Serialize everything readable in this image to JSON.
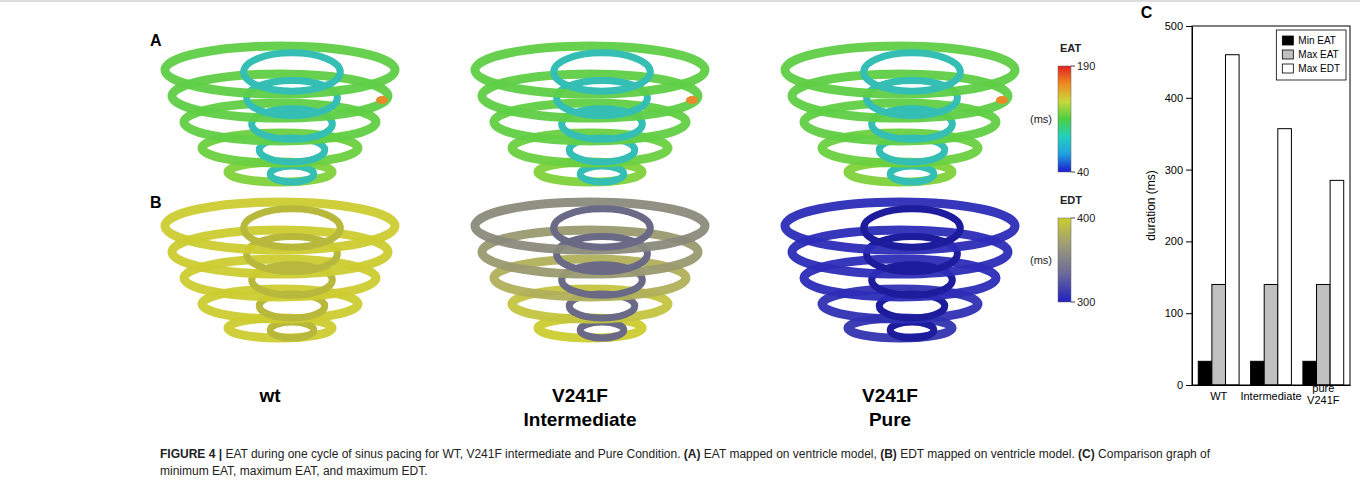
{
  "chart_data": {
    "type": "bar",
    "categories": [
      "WT",
      "Intermediate",
      "pure V241F"
    ],
    "series": [
      {
        "name": "Min EAT",
        "color": "#000000",
        "values": [
          33,
          33,
          33
        ]
      },
      {
        "name": "Max EAT",
        "color": "#c0c0c0",
        "values": [
          140,
          140,
          140
        ]
      },
      {
        "name": "Max EDT",
        "color": "#ffffff",
        "values": [
          460,
          357,
          285
        ]
      }
    ],
    "y_label": "duration (ms)",
    "ylim": [
      0,
      500
    ],
    "yticks": [
      0,
      100,
      200,
      300,
      400,
      500
    ],
    "grid": false,
    "legend": "upper right"
  },
  "figure": {
    "panel_labels": [
      "A",
      "B",
      "C"
    ],
    "colorbars": [
      {
        "label": "EAT",
        "unit": "(ms)",
        "range": [
          40,
          190
        ],
        "ticks": [
          40,
          190
        ]
      },
      {
        "label": "EDT",
        "unit": "(ms)",
        "range": [
          300,
          400
        ],
        "ticks": [
          300,
          400
        ]
      }
    ],
    "model_labels": [
      [
        "wt"
      ],
      [
        "V241F",
        "Intermediate"
      ],
      [
        "V241F",
        "Pure"
      ]
    ],
    "caption": [
      {
        "text": "FIGURE 4 |",
        "bold": true
      },
      {
        "text": " EAT during one cycle of sinus pacing for WT, V241F intermediate and Pure Condition. ",
        "bold": false
      },
      {
        "text": "(A)",
        "bold": true
      },
      {
        "text": " EAT mapped on ventricle model, ",
        "bold": false
      },
      {
        "text": "(B)",
        "bold": true
      },
      {
        "text": " EDT mapped on ventricle model. ",
        "bold": false
      },
      {
        "text": "(C)",
        "bold": true
      },
      {
        "text": " Comparison graph of minimum EAT, maximum EAT, and maximum EDT.",
        "bold": false
      }
    ]
  }
}
